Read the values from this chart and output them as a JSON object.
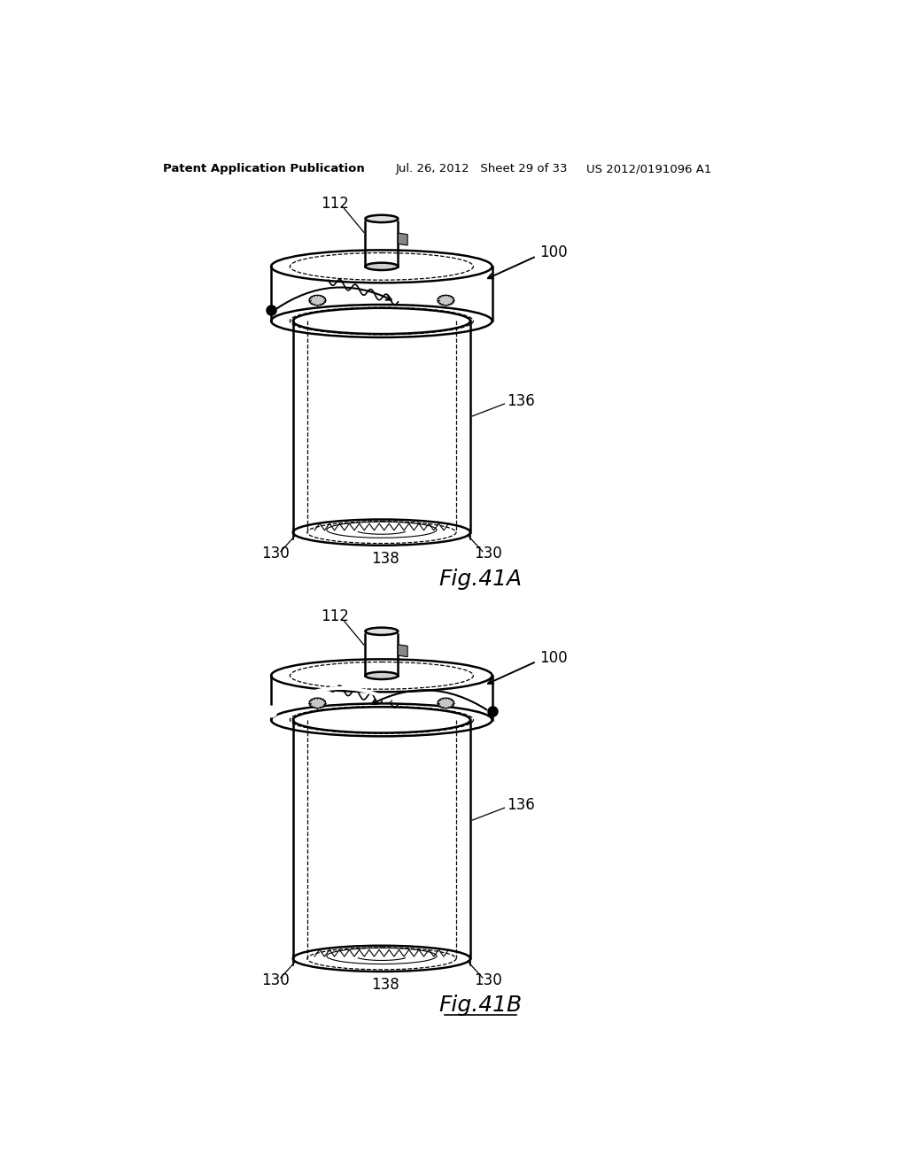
{
  "background_color": "#ffffff",
  "header_left": "Patent Application Publication",
  "header_center": "Jul. 26, 2012   Sheet 29 of 33",
  "header_right": "US 2012/0191096 A1",
  "fig41A_label": "Fig.41A",
  "fig41B_label": "Fig.41B"
}
